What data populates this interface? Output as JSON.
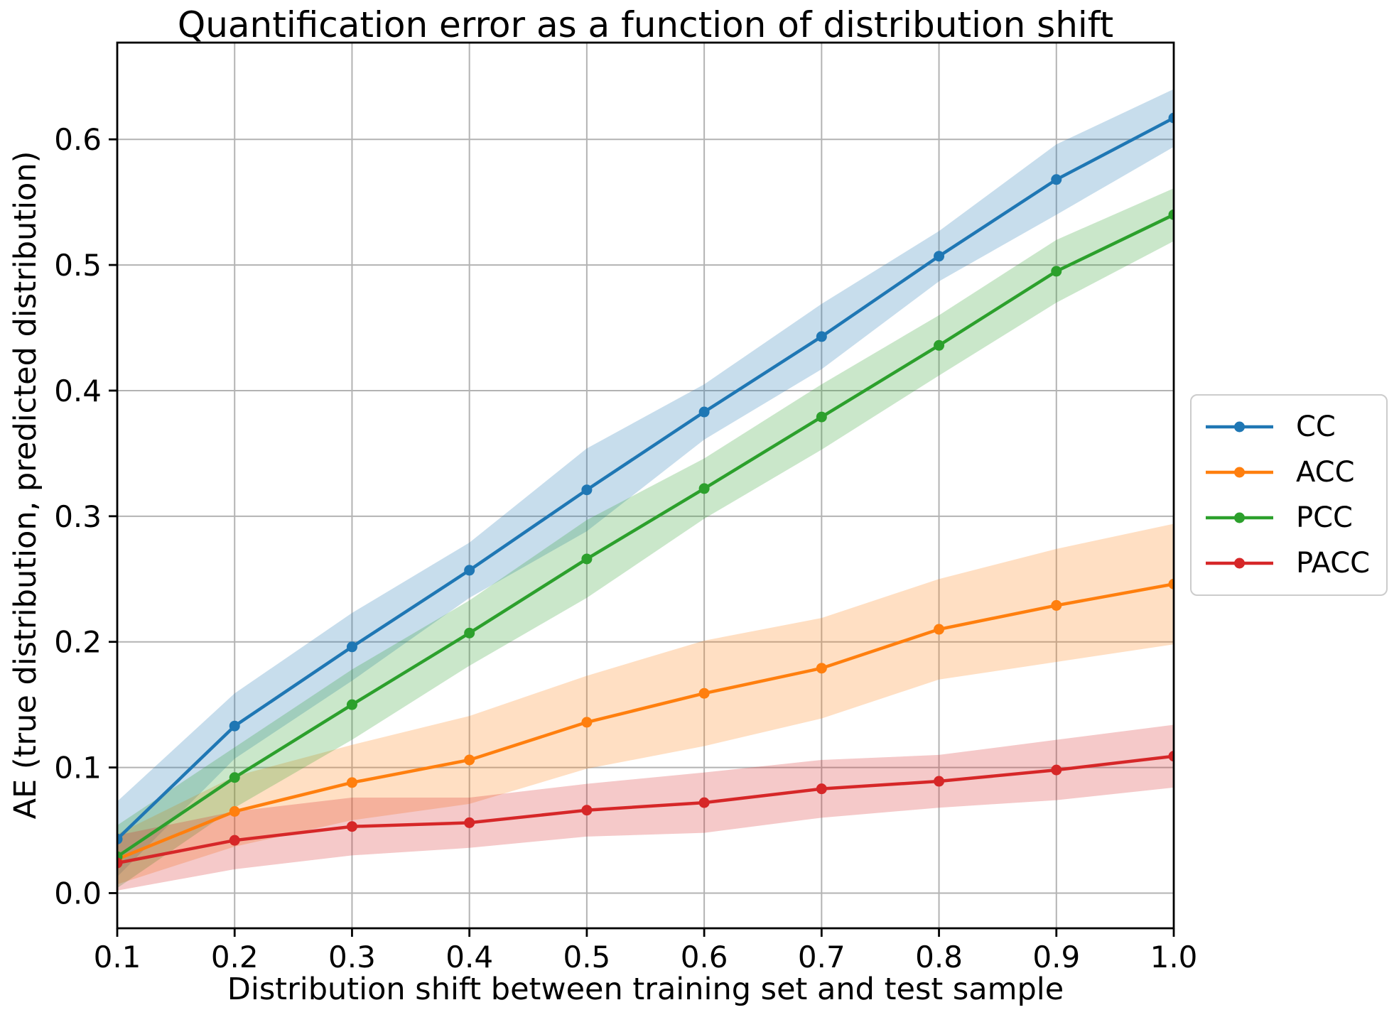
{
  "figure": {
    "background": "#ffffff",
    "grid_color": "#b3b3b3",
    "spine_color": "#000000",
    "text_color": "#000000",
    "legend_border_color": "#cccccc"
  },
  "chart_data": {
    "type": "line",
    "title": "Quantification error as a function of distribution shift",
    "xlabel": "Distribution shift between training set and test sample",
    "ylabel": "AE (true distribution, predicted distribution)",
    "x": [
      0.1,
      0.2,
      0.3,
      0.4,
      0.5,
      0.6,
      0.7,
      0.8,
      0.9,
      1.0
    ],
    "series": [
      {
        "name": "CC",
        "color": "#1f77b4",
        "values": [
          0.043,
          0.133,
          0.196,
          0.257,
          0.321,
          0.383,
          0.443,
          0.507,
          0.568,
          0.617
        ],
        "band_lower": [
          0.013,
          0.107,
          0.169,
          0.235,
          0.288,
          0.361,
          0.417,
          0.487,
          0.54,
          0.594
        ],
        "band_upper": [
          0.073,
          0.159,
          0.223,
          0.279,
          0.354,
          0.405,
          0.469,
          0.527,
          0.596,
          0.64
        ]
      },
      {
        "name": "ACC",
        "color": "#ff7f0e",
        "values": [
          0.027,
          0.065,
          0.088,
          0.106,
          0.136,
          0.159,
          0.179,
          0.21,
          0.229,
          0.246
        ],
        "band_lower": [
          0.007,
          0.037,
          0.058,
          0.071,
          0.099,
          0.117,
          0.139,
          0.17,
          0.184,
          0.198
        ],
        "band_upper": [
          0.047,
          0.093,
          0.118,
          0.141,
          0.173,
          0.201,
          0.219,
          0.25,
          0.274,
          0.294
        ]
      },
      {
        "name": "PCC",
        "color": "#2ca02c",
        "values": [
          0.029,
          0.092,
          0.15,
          0.207,
          0.266,
          0.322,
          0.379,
          0.436,
          0.495,
          0.54
        ],
        "band_lower": [
          0.004,
          0.068,
          0.122,
          0.181,
          0.235,
          0.298,
          0.353,
          0.412,
          0.47,
          0.519
        ],
        "band_upper": [
          0.054,
          0.116,
          0.178,
          0.233,
          0.297,
          0.346,
          0.405,
          0.46,
          0.52,
          0.561
        ]
      },
      {
        "name": "PACC",
        "color": "#d62728",
        "values": [
          0.024,
          0.042,
          0.053,
          0.056,
          0.066,
          0.072,
          0.083,
          0.089,
          0.098,
          0.109
        ],
        "band_lower": [
          0.002,
          0.019,
          0.03,
          0.036,
          0.045,
          0.048,
          0.06,
          0.068,
          0.074,
          0.084
        ],
        "band_upper": [
          0.046,
          0.065,
          0.076,
          0.076,
          0.087,
          0.096,
          0.106,
          0.11,
          0.122,
          0.134
        ]
      }
    ],
    "x_ticks": [
      0.1,
      0.2,
      0.3,
      0.4,
      0.5,
      0.6,
      0.7,
      0.8,
      0.9,
      1.0
    ],
    "y_ticks": [
      0.0,
      0.1,
      0.2,
      0.3,
      0.4,
      0.5,
      0.6
    ],
    "xlim": [
      0.1,
      1.0
    ],
    "ylim": [
      -0.028,
      0.677
    ],
    "grid": true,
    "band_alpha": 0.25,
    "legend_position": "outside right",
    "legend_labels": [
      "CC",
      "ACC",
      "PCC",
      "PACC"
    ]
  }
}
